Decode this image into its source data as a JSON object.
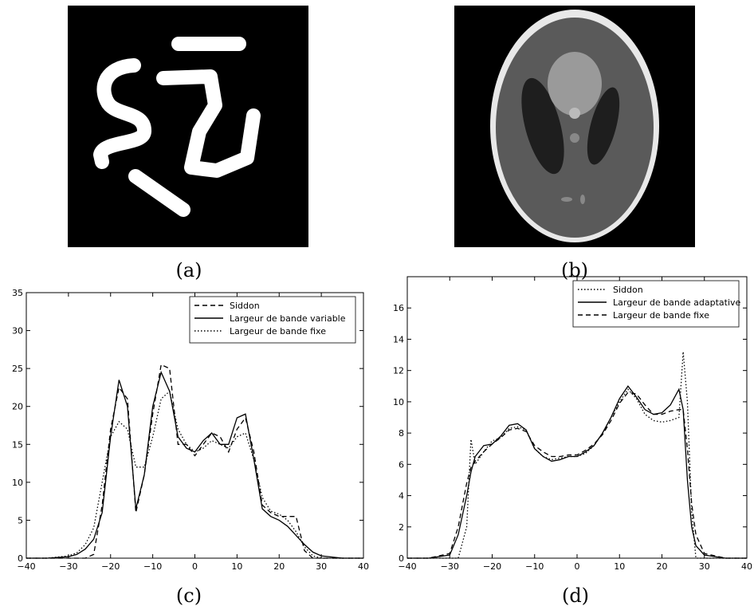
{
  "panel_labels": [
    "(a)",
    "(b)",
    "(c)",
    "(d)"
  ],
  "chart_data": [
    {
      "type": "line",
      "xlim": [
        -40,
        40
      ],
      "xticks": [
        {
          "value": -40,
          "label": "−40"
        },
        {
          "value": -30,
          "label": "−30"
        },
        {
          "value": -20,
          "label": "−20"
        },
        {
          "value": -10,
          "label": "−10"
        },
        0,
        10,
        20,
        30,
        40
      ],
      "ylim": [
        0,
        35
      ],
      "yticks": [
        0,
        5,
        10,
        15,
        20,
        25,
        30,
        35
      ],
      "legend": "upper right",
      "x": [
        -40,
        -35,
        -30,
        -28,
        -26,
        -24,
        -22,
        -20,
        -18,
        -16,
        -14,
        -12,
        -10,
        -8,
        -6,
        -4,
        -2,
        0,
        2,
        4,
        6,
        8,
        10,
        12,
        14,
        16,
        18,
        20,
        22,
        24,
        26,
        28,
        30,
        35,
        40
      ],
      "series": [
        {
          "name": "Siddon",
          "color": "#000000",
          "dash": "dashed",
          "values": [
            0,
            0,
            0,
            0,
            0,
            0.5,
            7,
            17,
            22.5,
            21,
            6,
            11,
            19,
            25.5,
            25,
            15,
            15,
            13.5,
            15,
            16.5,
            16,
            14,
            17,
            18.5,
            14,
            7,
            6,
            5.5,
            5.5,
            5.5,
            1,
            0,
            0,
            0,
            0
          ]
        },
        {
          "name": "Largeur de bande variable",
          "color": "#000000",
          "dash": "solid",
          "values": [
            0,
            0,
            0.2,
            0.5,
            1.2,
            2.5,
            6,
            16,
            23.5,
            20,
            6.5,
            11,
            20,
            24.5,
            22,
            16,
            14.5,
            14,
            15.5,
            16.5,
            15,
            15,
            18.5,
            19,
            13,
            6.5,
            5.5,
            5,
            4.2,
            3,
            1.8,
            0.8,
            0.3,
            0,
            0
          ]
        },
        {
          "name": "Largeur de bande fixe",
          "color": "#000000",
          "dash": "dotted",
          "values": [
            0,
            0,
            0.3,
            0.7,
            1.8,
            4,
            10,
            16,
            18,
            17,
            12,
            12,
            16,
            21,
            22,
            17,
            15,
            14,
            14.5,
            15.5,
            15,
            14.5,
            16,
            16.5,
            13,
            8,
            6.2,
            5.8,
            5,
            3.5,
            1.5,
            0.3,
            0,
            0,
            0
          ]
        }
      ]
    },
    {
      "type": "line",
      "xlim": [
        -40,
        40
      ],
      "xticks": [
        {
          "value": -40,
          "label": "−40"
        },
        {
          "value": -30,
          "label": "−30"
        },
        {
          "value": -20,
          "label": "−20"
        },
        {
          "value": -10,
          "label": "−10"
        },
        0,
        10,
        20,
        30,
        40
      ],
      "ylim": [
        0,
        18
      ],
      "yticks": [
        0,
        2,
        4,
        6,
        8,
        10,
        12,
        14,
        16
      ],
      "legend": "upper right",
      "x": [
        -40,
        -35,
        -30,
        -28,
        -26,
        -25,
        -24,
        -22,
        -20,
        -18,
        -16,
        -14,
        -12,
        -10,
        -8,
        -6,
        -4,
        -2,
        0,
        2,
        4,
        6,
        8,
        10,
        12,
        14,
        16,
        18,
        20,
        22,
        24,
        25,
        26,
        27,
        28,
        30,
        35,
        40
      ],
      "series": [
        {
          "name": "Siddon",
          "color": "#000000",
          "dash": "dotted",
          "values": [
            0,
            0,
            0,
            0,
            2,
            7.6,
            6,
            6.8,
            7.5,
            7.7,
            8.3,
            8.4,
            8.2,
            7,
            6.5,
            6.3,
            6.4,
            6.5,
            6.5,
            6.7,
            7.2,
            8,
            9,
            10,
            10.8,
            10.2,
            9.2,
            8.8,
            8.7,
            8.8,
            9,
            13.2,
            10,
            3,
            0,
            0,
            0,
            0
          ]
        },
        {
          "name": "Largeur de bande adaptative",
          "color": "#000000",
          "dash": "solid",
          "values": [
            0,
            0,
            0.2,
            1.5,
            4,
            5.5,
            6.5,
            7.2,
            7.3,
            7.8,
            8.5,
            8.6,
            8.2,
            7,
            6.5,
            6.2,
            6.3,
            6.5,
            6.5,
            6.8,
            7.2,
            8,
            9,
            10.2,
            11,
            10.3,
            9.5,
            9.2,
            9.3,
            9.8,
            10.8,
            9.5,
            5,
            2,
            0.8,
            0.2,
            0,
            0
          ]
        },
        {
          "name": "Largeur de bande fixe",
          "color": "#000000",
          "dash": "dashed",
          "values": [
            0,
            0,
            0.3,
            2,
            4.8,
            5.8,
            6.2,
            6.8,
            7.3,
            7.7,
            8.2,
            8.3,
            8.1,
            7.2,
            6.8,
            6.5,
            6.5,
            6.6,
            6.6,
            6.9,
            7.3,
            7.9,
            8.8,
            9.9,
            10.6,
            10.5,
            9.8,
            9.2,
            9.2,
            9.4,
            9.5,
            9.5,
            7,
            3.5,
            1.5,
            0.3,
            0,
            0
          ]
        }
      ]
    }
  ]
}
